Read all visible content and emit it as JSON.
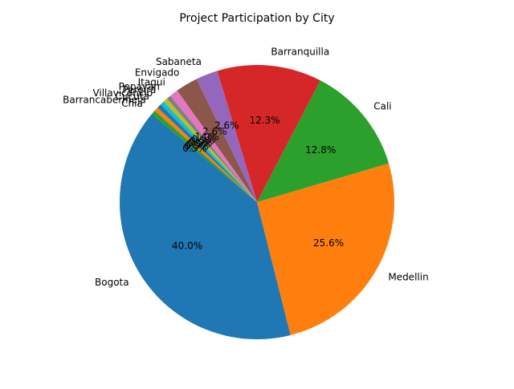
{
  "chart_data": {
    "type": "pie",
    "title": "Project Participation by City",
    "start_angle_deg": 140,
    "direction": "counterclockwise",
    "autopct_format": "1 decimal place",
    "slices": [
      {
        "label": "Bogota",
        "value": 40.0,
        "pct_label": "40.0%",
        "color": "#1f77b4"
      },
      {
        "label": "Medellin",
        "value": 25.6,
        "pct_label": "25.6%",
        "color": "#ff7f0e"
      },
      {
        "label": "Cali",
        "value": 12.8,
        "pct_label": "12.8%",
        "color": "#2ca02c"
      },
      {
        "label": "Barranquilla",
        "value": 12.3,
        "pct_label": "12.3%",
        "color": "#d62728"
      },
      {
        "label": "Sabaneta",
        "value": 2.6,
        "pct_label": "2.6%",
        "color": "#9467bd"
      },
      {
        "label": "Envigado",
        "value": 2.6,
        "pct_label": "2.6%",
        "color": "#8c564b"
      },
      {
        "label": "Itagui",
        "value": 1.0,
        "pct_label": "1.0%",
        "color": "#e377c2"
      },
      {
        "label": "Popayan",
        "value": 0.5,
        "pct_label": "0.5%",
        "color": "#7f7f7f"
      },
      {
        "label": "Pereira",
        "value": 0.5,
        "pct_label": "0.5%",
        "color": "#bcbd22"
      },
      {
        "label": "Villavicencio",
        "value": 0.5,
        "pct_label": "0.5%",
        "color": "#17becf"
      },
      {
        "label": "Cucuta",
        "value": 0.5,
        "pct_label": "0.5%",
        "color": "#1f77b4"
      },
      {
        "label": "Barrancabermeja",
        "value": 0.5,
        "pct_label": "0.5%",
        "color": "#ff7f0e"
      },
      {
        "label": "Chia",
        "value": 0.5,
        "pct_label": "0.5%",
        "color": "#2ca02c"
      }
    ]
  }
}
